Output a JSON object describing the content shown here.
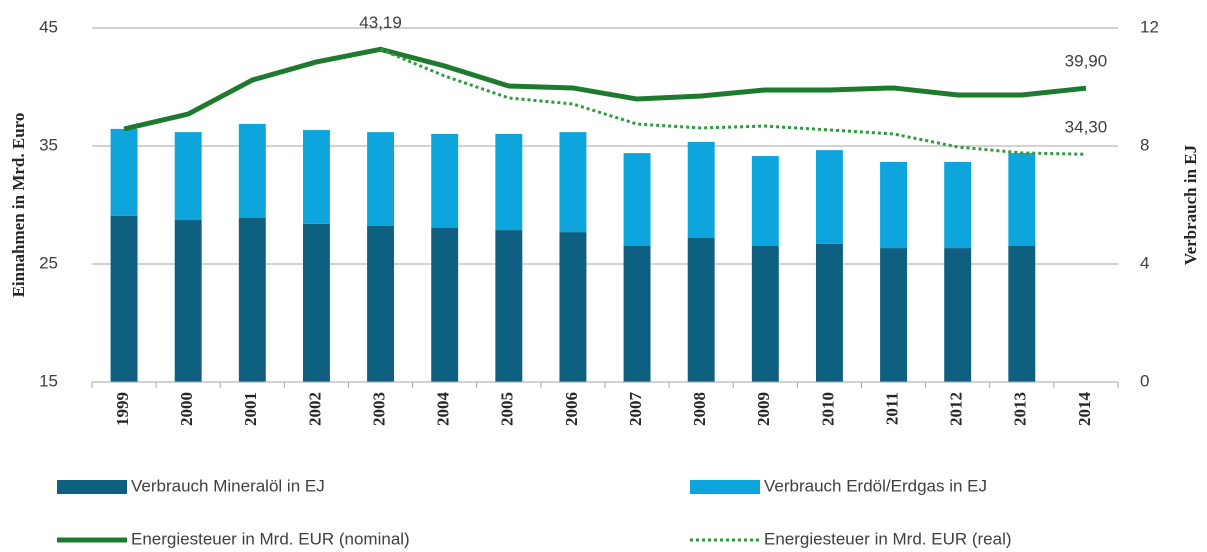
{
  "chart_data": {
    "type": "bar",
    "categories": [
      "1999",
      "2000",
      "2001",
      "2002",
      "2003",
      "2004",
      "2005",
      "2006",
      "2007",
      "2008",
      "2009",
      "2010",
      "2011",
      "2012",
      "2013",
      "2014"
    ],
    "series": [
      {
        "name": "Verbrauch Mineralöl in EJ",
        "type": "bar",
        "axis": "y2",
        "stacked": true,
        "color": "#0e5f80",
        "values": [
          5.63,
          5.49,
          5.56,
          5.36,
          5.29,
          5.22,
          5.15,
          5.08,
          4.61,
          4.88,
          4.61,
          4.68,
          4.54,
          4.54,
          4.61,
          null
        ]
      },
      {
        "name": "Verbrauch Erdöl/Erdgas in EJ",
        "type": "bar",
        "axis": "y2",
        "stacked": true,
        "color": "#0ea5dc",
        "values": [
          2.95,
          2.98,
          3.19,
          3.18,
          3.18,
          3.19,
          3.26,
          3.39,
          3.15,
          3.26,
          3.05,
          3.18,
          2.92,
          2.92,
          3.15,
          null
        ]
      },
      {
        "name": "Energiesteuer in Mrd. EUR (nominal)",
        "type": "line",
        "axis": "y",
        "color": "#1e7a2e",
        "dash": "solid",
        "values": [
          36.44,
          37.71,
          40.59,
          42.12,
          43.19,
          41.78,
          40.08,
          39.92,
          38.98,
          39.24,
          39.75,
          39.75,
          39.92,
          39.32,
          39.32,
          39.9
        ],
        "value_labels": [
          null,
          null,
          null,
          null,
          "43,19",
          null,
          null,
          null,
          null,
          null,
          null,
          null,
          null,
          null,
          null,
          "39,90"
        ]
      },
      {
        "name": "Energiesteuer in Mrd. EUR (real)",
        "type": "line",
        "axis": "y",
        "color": "#2f9a3f",
        "dash": "dotted",
        "values": [
          null,
          null,
          null,
          null,
          43.19,
          40.93,
          39.07,
          38.56,
          36.86,
          36.53,
          36.69,
          36.36,
          36.02,
          34.92,
          34.41,
          34.3
        ],
        "value_labels": [
          null,
          null,
          null,
          null,
          null,
          null,
          null,
          null,
          null,
          null,
          null,
          null,
          null,
          null,
          null,
          "34,30"
        ]
      }
    ],
    "ylabel": "Einnahmen in Mrd. Euro",
    "y2label": "Verbrauch in EJ",
    "ylim": [
      15,
      45
    ],
    "yticks": [
      15,
      25,
      35,
      45
    ],
    "y2lim": [
      0,
      12
    ],
    "y2ticks": [
      0,
      4,
      8,
      12
    ],
    "grid": true,
    "legend": "bottom"
  }
}
